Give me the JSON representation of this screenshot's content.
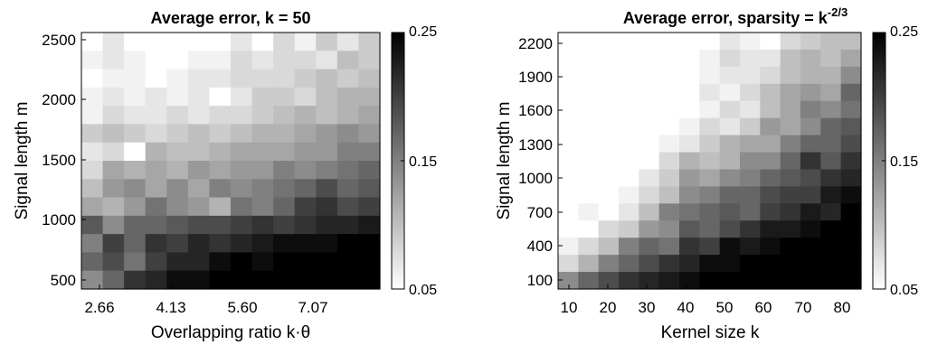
{
  "chart_data": [
    {
      "type": "heatmap",
      "title": "Average error, k = 50",
      "xlabel": "Overlapping ratio k·θ",
      "ylabel": "Signal length m",
      "x_ticks": [
        "2.66",
        "4.13",
        "5.60",
        "7.07"
      ],
      "y_ticks": [
        "500",
        "1000",
        "1500",
        "2000",
        "2500"
      ],
      "colorbar": {
        "min": 0.05,
        "max": 0.25,
        "ticks": [
          "0.25",
          "0.15",
          "0.05"
        ],
        "colormap": "white-to-black"
      },
      "grid_size": {
        "cols": 14,
        "rows": 14
      },
      "values_top_to_bottom": [
        [
          0.05,
          0.07,
          0.05,
          0.05,
          0.05,
          0.05,
          0.05,
          0.07,
          0.05,
          0.08,
          0.06,
          0.09,
          0.07,
          0.09
        ],
        [
          0.06,
          0.07,
          0.06,
          0.05,
          0.05,
          0.06,
          0.06,
          0.08,
          0.07,
          0.08,
          0.08,
          0.07,
          0.1,
          0.09
        ],
        [
          0.05,
          0.06,
          0.06,
          0.05,
          0.06,
          0.07,
          0.07,
          0.08,
          0.08,
          0.08,
          0.09,
          0.1,
          0.09,
          0.1
        ],
        [
          0.06,
          0.07,
          0.06,
          0.07,
          0.06,
          0.07,
          0.05,
          0.07,
          0.09,
          0.09,
          0.08,
          0.1,
          0.11,
          0.11
        ],
        [
          0.06,
          0.08,
          0.07,
          0.07,
          0.08,
          0.07,
          0.08,
          0.08,
          0.09,
          0.1,
          0.11,
          0.1,
          0.11,
          0.12
        ],
        [
          0.09,
          0.1,
          0.09,
          0.08,
          0.09,
          0.1,
          0.09,
          0.1,
          0.11,
          0.11,
          0.12,
          0.13,
          0.14,
          0.13
        ],
        [
          0.07,
          0.08,
          0.05,
          0.11,
          0.1,
          0.1,
          0.11,
          0.12,
          0.12,
          0.12,
          0.13,
          0.13,
          0.15,
          0.15
        ],
        [
          0.08,
          0.12,
          0.11,
          0.12,
          0.11,
          0.13,
          0.12,
          0.13,
          0.13,
          0.15,
          0.14,
          0.15,
          0.16,
          0.17
        ],
        [
          0.1,
          0.13,
          0.14,
          0.12,
          0.14,
          0.12,
          0.15,
          0.14,
          0.15,
          0.16,
          0.17,
          0.19,
          0.17,
          0.18
        ],
        [
          0.12,
          0.11,
          0.13,
          0.16,
          0.14,
          0.13,
          0.11,
          0.16,
          0.15,
          0.17,
          0.2,
          0.21,
          0.19,
          0.2
        ],
        [
          0.18,
          0.14,
          0.17,
          0.17,
          0.18,
          0.19,
          0.19,
          0.2,
          0.21,
          0.2,
          0.21,
          0.22,
          0.22,
          0.23
        ],
        [
          0.15,
          0.2,
          0.17,
          0.21,
          0.2,
          0.22,
          0.21,
          0.22,
          0.23,
          0.24,
          0.24,
          0.24,
          0.25,
          0.25
        ],
        [
          0.17,
          0.19,
          0.16,
          0.2,
          0.22,
          0.22,
          0.24,
          0.25,
          0.24,
          0.25,
          0.25,
          0.25,
          0.25,
          0.25
        ],
        [
          0.14,
          0.17,
          0.21,
          0.22,
          0.24,
          0.24,
          0.25,
          0.25,
          0.25,
          0.25,
          0.25,
          0.25,
          0.25,
          0.25
        ]
      ]
    },
    {
      "type": "heatmap",
      "title": "Average error, sparsity = k",
      "title_superscript": "-2/3",
      "xlabel": "Kernel size k",
      "ylabel": "Signal length m",
      "x_ticks": [
        "10",
        "20",
        "30",
        "40",
        "50",
        "60",
        "70",
        "80"
      ],
      "y_ticks": [
        "100",
        "400",
        "700",
        "1000",
        "1300",
        "1600",
        "1900",
        "2200"
      ],
      "colorbar": {
        "min": 0.05,
        "max": 0.25,
        "ticks": [
          "0.25",
          "0.15",
          "0.05"
        ],
        "colormap": "white-to-black"
      },
      "grid_size": {
        "cols": 15,
        "rows": 15
      },
      "values_top_to_bottom": [
        [
          null,
          null,
          null,
          null,
          null,
          null,
          null,
          null,
          0.07,
          0.06,
          0.05,
          0.08,
          0.09,
          0.1,
          0.1
        ],
        [
          null,
          null,
          null,
          null,
          null,
          null,
          null,
          0.06,
          0.08,
          0.07,
          0.07,
          0.1,
          0.11,
          0.1,
          0.12
        ],
        [
          null,
          null,
          null,
          null,
          null,
          null,
          null,
          0.06,
          0.07,
          0.07,
          0.08,
          0.1,
          0.11,
          0.11,
          0.14
        ],
        [
          null,
          null,
          null,
          null,
          null,
          null,
          null,
          0.07,
          0.06,
          0.08,
          0.1,
          0.12,
          0.13,
          0.12,
          0.17
        ],
        [
          null,
          null,
          null,
          null,
          null,
          null,
          0.05,
          0.06,
          0.08,
          0.07,
          0.1,
          0.12,
          0.15,
          0.14,
          0.16
        ],
        [
          null,
          null,
          null,
          null,
          null,
          null,
          0.06,
          0.08,
          0.07,
          0.09,
          0.13,
          0.12,
          0.14,
          0.17,
          0.18
        ],
        [
          null,
          null,
          null,
          null,
          null,
          0.06,
          0.07,
          0.09,
          0.11,
          0.12,
          0.12,
          0.15,
          0.17,
          0.17,
          0.19
        ],
        [
          null,
          null,
          null,
          null,
          null,
          0.08,
          0.11,
          0.1,
          0.11,
          0.14,
          0.14,
          0.17,
          0.21,
          0.18,
          0.21
        ],
        [
          null,
          null,
          null,
          null,
          0.07,
          0.09,
          0.13,
          0.12,
          0.14,
          0.15,
          0.17,
          0.18,
          0.19,
          0.21,
          0.22
        ],
        [
          null,
          null,
          null,
          0.06,
          0.08,
          0.1,
          0.14,
          0.15,
          0.17,
          0.17,
          0.19,
          0.2,
          0.2,
          0.23,
          0.24
        ],
        [
          null,
          0.06,
          0.05,
          0.07,
          0.1,
          0.15,
          0.16,
          0.17,
          0.18,
          0.17,
          0.2,
          0.21,
          0.23,
          0.22,
          0.25
        ],
        [
          null,
          0.05,
          0.08,
          0.09,
          0.13,
          0.14,
          0.18,
          0.17,
          0.19,
          0.21,
          0.23,
          0.23,
          0.24,
          0.25,
          0.25
        ],
        [
          0.06,
          0.08,
          0.1,
          0.15,
          0.17,
          0.16,
          0.21,
          0.2,
          0.24,
          0.23,
          0.24,
          0.25,
          0.25,
          0.25,
          0.25
        ],
        [
          0.08,
          0.11,
          0.15,
          0.17,
          0.19,
          0.21,
          0.22,
          0.24,
          0.24,
          0.25,
          0.25,
          0.25,
          0.25,
          0.25,
          0.25
        ],
        [
          0.14,
          0.17,
          0.19,
          0.21,
          0.22,
          0.23,
          0.24,
          0.25,
          0.25,
          0.25,
          0.25,
          0.25,
          0.25,
          0.25,
          0.25
        ]
      ]
    }
  ]
}
